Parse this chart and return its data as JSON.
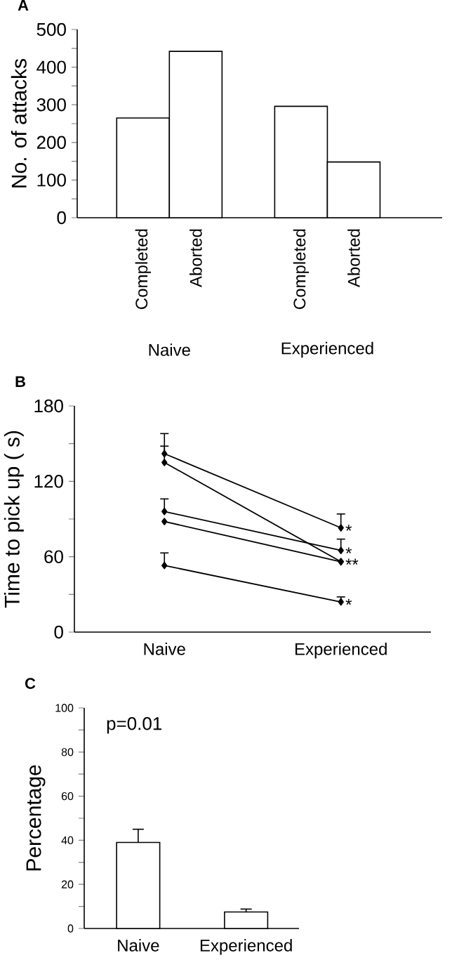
{
  "chart_data": [
    {
      "type": "bar",
      "title": "A",
      "ylabel": "No. of attacks",
      "categories": [
        "Completed",
        "Aborted",
        null,
        "Completed",
        "Aborted"
      ],
      "values": [
        265,
        442,
        null,
        296,
        148
      ],
      "color": "#ffffff",
      "ylim": [
        0,
        500
      ],
      "yticks": [
        0,
        100,
        200,
        300,
        400,
        500
      ],
      "annotations": [
        "Naive",
        "Experienced"
      ]
    },
    {
      "type": "line",
      "title": "B",
      "ylabel": "Time to pick up ( s)",
      "categories": [
        "Naive",
        "Experienced"
      ],
      "marker": "diamond",
      "series": [
        {
          "color": "#000000",
          "values": [
            142,
            83
          ],
          "errors": [
            [
              142,
              158
            ],
            [
              83,
              94
            ]
          ]
        },
        {
          "color": "#000000",
          "values": [
            135,
            56
          ],
          "errors": [
            [
              135,
              148
            ],
            null
          ]
        },
        {
          "color": "#000000",
          "values": [
            96,
            65
          ],
          "errors": [
            [
              96,
              106
            ],
            [
              65,
              74
            ]
          ]
        },
        {
          "color": "#000000",
          "values": [
            88,
            56
          ],
          "errors": [
            null,
            null
          ]
        },
        {
          "color": "#000000",
          "values": [
            53,
            24
          ],
          "errors": [
            [
              53,
              63
            ],
            [
              24,
              28
            ]
          ]
        }
      ],
      "ylim": [
        0,
        180
      ],
      "yticks": [
        0,
        60,
        120,
        180
      ],
      "annotations": [
        {
          "text": "*",
          "x": "Experienced",
          "y": 83
        },
        {
          "text": "*",
          "x": "Experienced",
          "y": 65
        },
        {
          "text": "**",
          "x": "Experienced",
          "y": 56
        },
        {
          "text": "*",
          "x": "Experienced",
          "y": 24
        }
      ]
    },
    {
      "type": "bar",
      "title": "C",
      "ylabel": "Percentage",
      "categories": [
        "Naive",
        "Experienced"
      ],
      "values": [
        39,
        7.5
      ],
      "color": "#ffffff",
      "errors": [
        [
          39,
          45
        ],
        [
          7.5,
          8.8
        ]
      ],
      "ylim": [
        0,
        100
      ],
      "yticks": [
        0,
        20,
        40,
        60,
        80,
        100
      ],
      "annotations": [
        "p=0.01"
      ]
    }
  ]
}
